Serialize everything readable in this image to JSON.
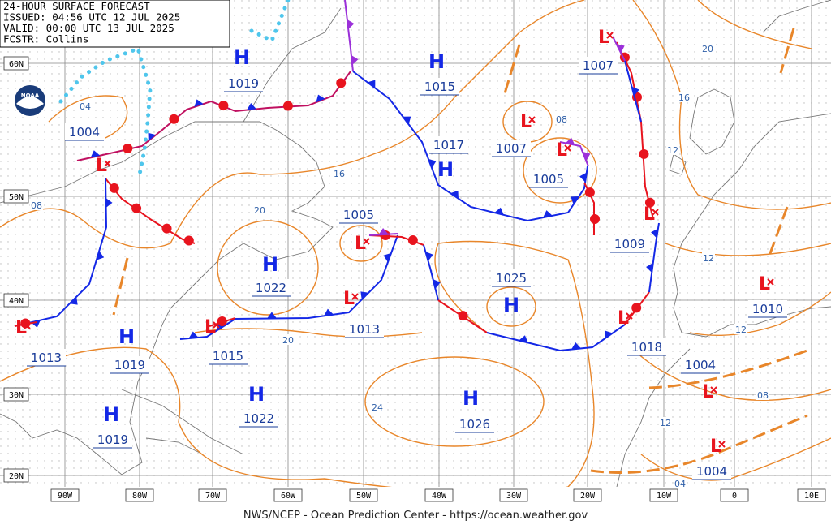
{
  "header": {
    "lines": [
      "24-HOUR SURFACE FORECAST",
      "ISSUED: 04:56 UTC 12 JUL 2025",
      "VALID:  00:00 UTC 13 JUL 2025",
      "FCSTR:  Collins"
    ]
  },
  "logo": "NOAA",
  "latitudes": [
    "60N",
    "50N",
    "40N",
    "30N",
    "20N"
  ],
  "longitudes": [
    "90W",
    "80W",
    "70W",
    "60W",
    "50W",
    "40W",
    "30W",
    "20W",
    "10W",
    "0",
    "10E"
  ],
  "pressure_systems": [
    {
      "symbol": "H",
      "pressure": 1019
    },
    {
      "symbol": "H",
      "pressure": 1015
    },
    {
      "symbol": "L",
      "pressure": 1007
    },
    {
      "symbol": "L",
      "pressure": 1004
    },
    {
      "symbol": "H",
      "pressure": 1017
    },
    {
      "symbol": "L",
      "pressure": 1007
    },
    {
      "symbol": "L",
      "pressure": 1005
    },
    {
      "symbol": "L",
      "pressure": 1005
    },
    {
      "symbol": "H",
      "pressure": 1022
    },
    {
      "symbol": "H",
      "pressure": 1025
    },
    {
      "symbol": "L",
      "pressure": 1009
    },
    {
      "symbol": "L",
      "pressure": 1010
    },
    {
      "symbol": "L",
      "pressure": 1013
    },
    {
      "symbol": "L",
      "pressure": 1013
    },
    {
      "symbol": "H",
      "pressure": 1019
    },
    {
      "symbol": "L",
      "pressure": 1015
    },
    {
      "symbol": "L",
      "pressure": 1018
    },
    {
      "symbol": "L",
      "pressure": 1004
    },
    {
      "symbol": "H",
      "pressure": 1022
    },
    {
      "symbol": "H",
      "pressure": 1026
    },
    {
      "symbol": "H",
      "pressure": 1019
    },
    {
      "symbol": "L",
      "pressure": 1004
    }
  ],
  "isobar_labels": [
    "04",
    "08",
    "16",
    "20",
    "08",
    "20",
    "16",
    "12",
    "12",
    "12",
    "20",
    "24",
    "08",
    "12",
    "04"
  ],
  "footer": "NWS/NCEP - Ocean Prediction Center - https://ocean.weather.gov"
}
